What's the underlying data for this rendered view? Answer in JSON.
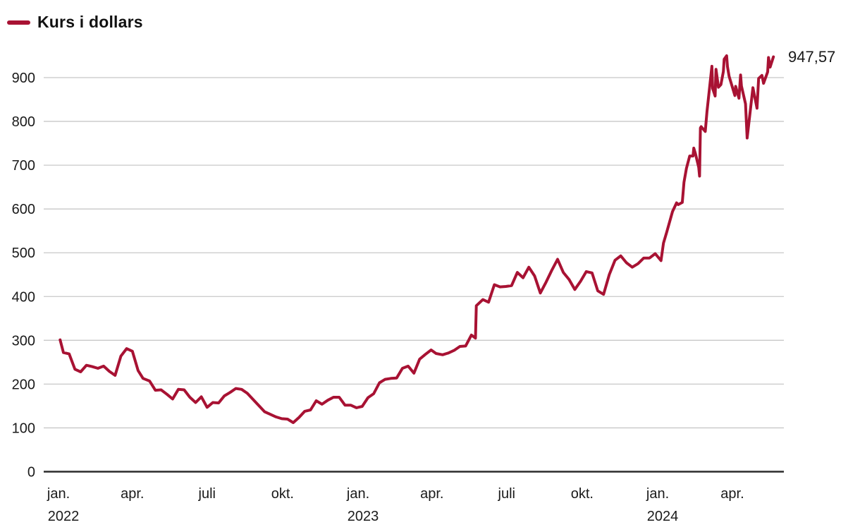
{
  "legend": {
    "label": "Kurs i dollars"
  },
  "colors": {
    "line": "#a81233",
    "grid": "#c8c8c8",
    "axis": "#2b2b2b",
    "text": "#1a1a1a",
    "background": "#ffffff"
  },
  "chart_data": {
    "type": "line",
    "title": "Kurs i dollars",
    "xlabel": "",
    "ylabel": "",
    "ylim": [
      0,
      960
    ],
    "x_domain": [
      "2022-01-01",
      "2024-06-01"
    ],
    "grid": true,
    "legend_position": "top-left",
    "y_ticks": [
      0,
      100,
      200,
      300,
      400,
      500,
      600,
      700,
      800,
      900
    ],
    "x_ticks": [
      {
        "date": "2022-01-01",
        "label": "jan.",
        "year": "2022"
      },
      {
        "date": "2022-04-01",
        "label": "apr."
      },
      {
        "date": "2022-07-01",
        "label": "juli"
      },
      {
        "date": "2022-10-01",
        "label": "okt."
      },
      {
        "date": "2023-01-01",
        "label": "jan.",
        "year": "2023"
      },
      {
        "date": "2023-04-01",
        "label": "apr."
      },
      {
        "date": "2023-07-01",
        "label": "juli"
      },
      {
        "date": "2023-10-01",
        "label": "okt."
      },
      {
        "date": "2024-01-01",
        "label": "jan.",
        "year": "2024"
      },
      {
        "date": "2024-04-01",
        "label": "apr."
      }
    ],
    "end_label": "947,57",
    "last_value": 947.57,
    "series": [
      {
        "name": "Kurs i dollars",
        "points": [
          [
            "2022-01-03",
            301
          ],
          [
            "2022-01-07",
            272
          ],
          [
            "2022-01-14",
            269
          ],
          [
            "2022-01-21",
            234
          ],
          [
            "2022-01-28",
            228
          ],
          [
            "2022-02-04",
            243
          ],
          [
            "2022-02-11",
            240
          ],
          [
            "2022-02-18",
            236
          ],
          [
            "2022-02-25",
            241
          ],
          [
            "2022-03-04",
            229
          ],
          [
            "2022-03-11",
            220
          ],
          [
            "2022-03-18",
            264
          ],
          [
            "2022-03-25",
            281
          ],
          [
            "2022-04-01",
            275
          ],
          [
            "2022-04-08",
            231
          ],
          [
            "2022-04-14",
            213
          ],
          [
            "2022-04-22",
            207
          ],
          [
            "2022-04-29",
            186
          ],
          [
            "2022-05-06",
            187
          ],
          [
            "2022-05-13",
            177
          ],
          [
            "2022-05-20",
            166
          ],
          [
            "2022-05-27",
            188
          ],
          [
            "2022-06-03",
            187
          ],
          [
            "2022-06-10",
            170
          ],
          [
            "2022-06-17",
            158
          ],
          [
            "2022-06-24",
            171
          ],
          [
            "2022-07-01",
            147
          ],
          [
            "2022-07-08",
            158
          ],
          [
            "2022-07-15",
            157
          ],
          [
            "2022-07-22",
            173
          ],
          [
            "2022-07-29",
            181
          ],
          [
            "2022-08-05",
            190
          ],
          [
            "2022-08-12",
            188
          ],
          [
            "2022-08-19",
            179
          ],
          [
            "2022-08-26",
            165
          ],
          [
            "2022-09-02",
            151
          ],
          [
            "2022-09-09",
            137
          ],
          [
            "2022-09-16",
            131
          ],
          [
            "2022-09-23",
            125
          ],
          [
            "2022-09-30",
            121
          ],
          [
            "2022-10-07",
            120
          ],
          [
            "2022-10-14",
            112
          ],
          [
            "2022-10-21",
            124
          ],
          [
            "2022-10-28",
            138
          ],
          [
            "2022-11-04",
            141
          ],
          [
            "2022-11-11",
            162
          ],
          [
            "2022-11-18",
            154
          ],
          [
            "2022-11-25",
            163
          ],
          [
            "2022-12-02",
            170
          ],
          [
            "2022-12-09",
            170
          ],
          [
            "2022-12-16",
            152
          ],
          [
            "2022-12-23",
            152
          ],
          [
            "2022-12-30",
            146
          ],
          [
            "2023-01-06",
            149
          ],
          [
            "2023-01-13",
            169
          ],
          [
            "2023-01-20",
            178
          ],
          [
            "2023-01-27",
            203
          ],
          [
            "2023-02-03",
            211
          ],
          [
            "2023-02-10",
            213
          ],
          [
            "2023-02-17",
            214
          ],
          [
            "2023-02-24",
            236
          ],
          [
            "2023-03-03",
            241
          ],
          [
            "2023-03-10",
            225
          ],
          [
            "2023-03-17",
            257
          ],
          [
            "2023-03-24",
            268
          ],
          [
            "2023-03-31",
            278
          ],
          [
            "2023-04-06",
            270
          ],
          [
            "2023-04-14",
            267
          ],
          [
            "2023-04-21",
            271
          ],
          [
            "2023-04-28",
            277
          ],
          [
            "2023-05-05",
            286
          ],
          [
            "2023-05-12",
            287
          ],
          [
            "2023-05-19",
            312
          ],
          [
            "2023-05-24",
            305
          ],
          [
            "2023-05-25",
            379
          ],
          [
            "2023-06-02",
            393
          ],
          [
            "2023-06-09",
            387
          ],
          [
            "2023-06-16",
            427
          ],
          [
            "2023-06-23",
            422
          ],
          [
            "2023-06-30",
            423
          ],
          [
            "2023-07-07",
            425
          ],
          [
            "2023-07-14",
            455
          ],
          [
            "2023-07-21",
            443
          ],
          [
            "2023-07-28",
            467
          ],
          [
            "2023-08-04",
            447
          ],
          [
            "2023-08-11",
            408
          ],
          [
            "2023-08-18",
            433
          ],
          [
            "2023-08-25",
            460
          ],
          [
            "2023-09-01",
            485
          ],
          [
            "2023-09-08",
            455
          ],
          [
            "2023-09-15",
            439
          ],
          [
            "2023-09-22",
            416
          ],
          [
            "2023-09-29",
            435
          ],
          [
            "2023-10-06",
            457
          ],
          [
            "2023-10-13",
            454
          ],
          [
            "2023-10-20",
            413
          ],
          [
            "2023-10-27",
            405
          ],
          [
            "2023-11-03",
            450
          ],
          [
            "2023-11-10",
            483
          ],
          [
            "2023-11-17",
            493
          ],
          [
            "2023-11-24",
            477
          ],
          [
            "2023-12-01",
            467
          ],
          [
            "2023-12-08",
            475
          ],
          [
            "2023-12-15",
            488
          ],
          [
            "2023-12-22",
            488
          ],
          [
            "2023-12-29",
            498
          ],
          [
            "2024-01-05",
            482
          ],
          [
            "2024-01-08",
            522
          ],
          [
            "2024-01-12",
            547
          ],
          [
            "2024-01-19",
            594
          ],
          [
            "2024-01-24",
            614
          ],
          [
            "2024-01-26",
            610
          ],
          [
            "2024-01-31",
            615
          ],
          [
            "2024-02-02",
            661
          ],
          [
            "2024-02-05",
            693
          ],
          [
            "2024-02-09",
            721
          ],
          [
            "2024-02-13",
            721
          ],
          [
            "2024-02-14",
            739
          ],
          [
            "2024-02-16",
            726
          ],
          [
            "2024-02-20",
            695
          ],
          [
            "2024-02-21",
            675
          ],
          [
            "2024-02-22",
            785
          ],
          [
            "2024-02-23",
            788
          ],
          [
            "2024-02-28",
            777
          ],
          [
            "2024-03-01",
            822
          ],
          [
            "2024-03-07",
            926
          ],
          [
            "2024-03-08",
            875
          ],
          [
            "2024-03-11",
            858
          ],
          [
            "2024-03-12",
            919
          ],
          [
            "2024-03-15",
            878
          ],
          [
            "2024-03-18",
            884
          ],
          [
            "2024-03-21",
            914
          ],
          [
            "2024-03-22",
            942
          ],
          [
            "2024-03-25",
            950
          ],
          [
            "2024-03-26",
            925
          ],
          [
            "2024-03-28",
            903
          ],
          [
            "2024-04-04",
            859
          ],
          [
            "2024-04-05",
            880
          ],
          [
            "2024-04-09",
            853
          ],
          [
            "2024-04-11",
            906
          ],
          [
            "2024-04-12",
            881
          ],
          [
            "2024-04-17",
            840
          ],
          [
            "2024-04-19",
            762
          ],
          [
            "2024-04-26",
            877
          ],
          [
            "2024-05-01",
            830
          ],
          [
            "2024-05-03",
            898
          ],
          [
            "2024-05-07",
            905
          ],
          [
            "2024-05-09",
            887
          ],
          [
            "2024-05-14",
            913
          ],
          [
            "2024-05-15",
            946
          ],
          [
            "2024-05-17",
            924
          ],
          [
            "2024-05-21",
            947.57
          ]
        ]
      }
    ]
  }
}
